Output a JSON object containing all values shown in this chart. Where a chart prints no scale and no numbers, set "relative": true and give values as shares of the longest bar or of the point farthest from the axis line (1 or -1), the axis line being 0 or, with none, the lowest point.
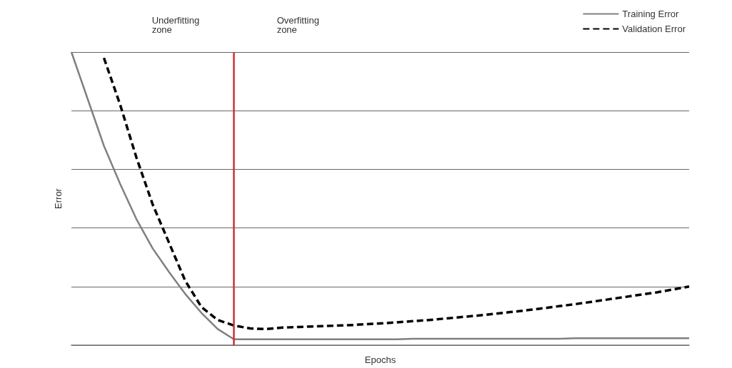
{
  "chart_data": {
    "type": "line",
    "relative": true,
    "xlabel": "Epochs",
    "ylabel": "Error",
    "categories": [
      null,
      null,
      null,
      null,
      null,
      null,
      null,
      null,
      null,
      null,
      null,
      null,
      null,
      null,
      null,
      null,
      null,
      null,
      null,
      null,
      null,
      null,
      null,
      null,
      null,
      null,
      null,
      null,
      null,
      null,
      null,
      null,
      null,
      null,
      null,
      null,
      null,
      null,
      null
    ],
    "series": [
      {
        "name": "Training Error",
        "color": "#808080",
        "line_style": "solid",
        "values": [
          1.0,
          0.84,
          0.68,
          0.55,
          0.43,
          0.33,
          0.25,
          0.175,
          0.11,
          0.055,
          0.02,
          0.02,
          0.02,
          0.02,
          0.02,
          0.02,
          0.02,
          0.02,
          0.02,
          0.02,
          0.02,
          0.022,
          0.022,
          0.022,
          0.022,
          0.022,
          0.022,
          0.022,
          0.022,
          0.022,
          0.022,
          0.024,
          0.024,
          0.024,
          0.024,
          0.024,
          0.024,
          0.024,
          0.024
        ]
      },
      {
        "name": "Validation Error",
        "color": "#000000",
        "line_style": "dashed",
        "values": [
          null,
          null,
          0.98,
          0.82,
          0.64,
          0.48,
          0.35,
          0.22,
          0.13,
          0.086,
          0.067,
          0.057,
          0.055,
          0.06,
          0.062,
          0.064,
          0.066,
          0.068,
          0.071,
          0.074,
          0.078,
          0.082,
          0.086,
          0.091,
          0.096,
          0.101,
          0.107,
          0.113,
          0.119,
          0.126,
          0.133,
          0.14,
          0.148,
          0.156,
          0.164,
          0.172,
          0.18,
          0.19,
          0.2
        ]
      }
    ],
    "annotations": [
      "Underfitting\nzone",
      "Overfitting\nzone"
    ],
    "grid": "y",
    "legend": "top right",
    "marker": "none"
  }
}
